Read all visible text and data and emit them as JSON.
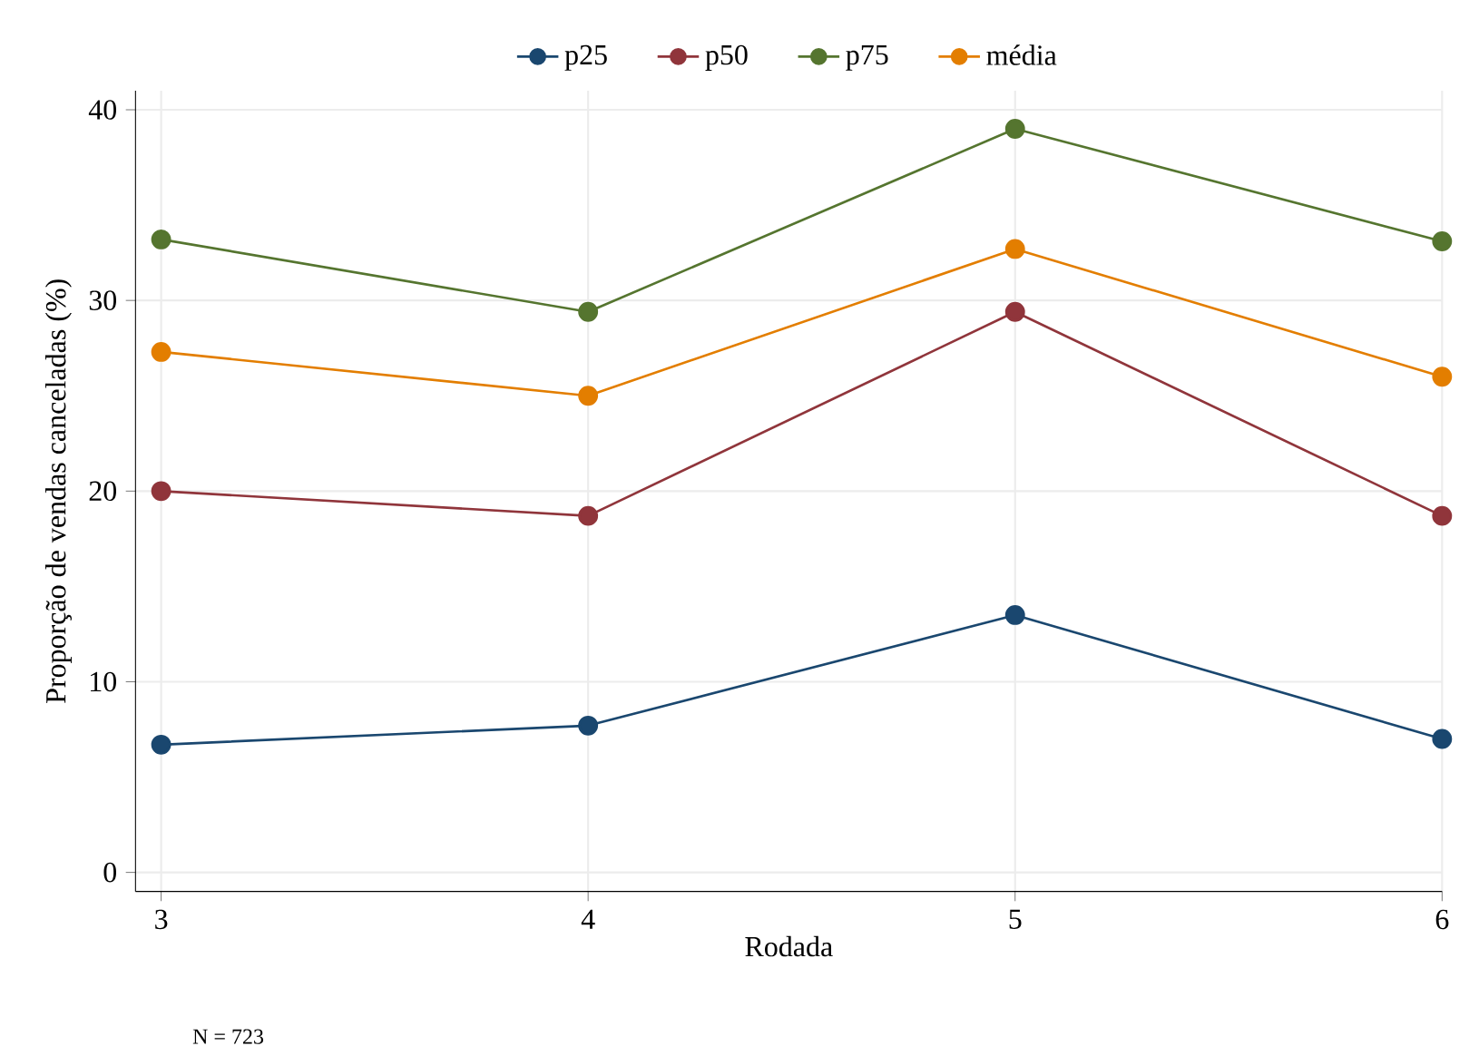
{
  "chart_data": {
    "type": "line",
    "xlabel": "Rodada",
    "ylabel": "Proporção de vendas canceladas (%)",
    "x": [
      3,
      4,
      5,
      6
    ],
    "series": [
      {
        "name": "p25",
        "color": "#1a476f",
        "values": [
          6.7,
          7.7,
          13.5,
          7.0
        ]
      },
      {
        "name": "p50",
        "color": "#90353b",
        "values": [
          20.0,
          18.7,
          29.4,
          18.7
        ]
      },
      {
        "name": "p75",
        "color": "#55752f",
        "values": [
          33.2,
          29.4,
          39.0,
          33.1
        ]
      },
      {
        "name": "média",
        "color": "#e37e00",
        "values": [
          27.3,
          25.0,
          32.7,
          26.0
        ]
      }
    ],
    "xlim": [
      2.94,
      6.0
    ],
    "ylim": [
      -1,
      41
    ],
    "xticks": [
      3,
      4,
      5,
      6
    ],
    "yticks": [
      0,
      10,
      20,
      30,
      40
    ],
    "grid": true,
    "legend": "top",
    "marker": "circle",
    "line_style": "solid",
    "annotations": [
      "N = 723"
    ]
  }
}
